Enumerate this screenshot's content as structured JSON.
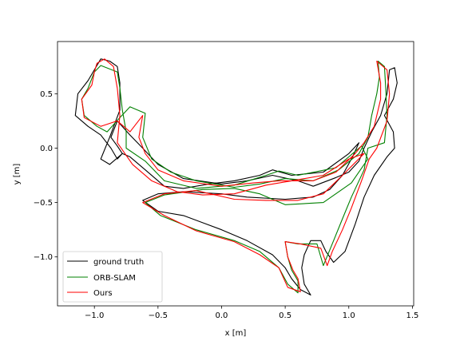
{
  "chart_data": {
    "type": "line",
    "title": "",
    "xlabel": "x [m]",
    "ylabel": "y [m]",
    "xlim": [
      -1.29,
      1.51
    ],
    "ylim": [
      -1.45,
      0.98
    ],
    "xticks": [
      -1.0,
      -0.5,
      0.0,
      0.5,
      1.0,
      1.5
    ],
    "xtick_labels": [
      "−1.0",
      "−0.5",
      "0.0",
      "0.5",
      "1.0",
      "1.5"
    ],
    "yticks": [
      -1.0,
      -0.5,
      0.0,
      0.5
    ],
    "ytick_labels": [
      "−1.0",
      "−0.5",
      "0.0",
      "0.5"
    ],
    "grid": false,
    "legend": "lower-left",
    "series": [
      {
        "name": "ground truth",
        "color": "#000000",
        "points": [
          [
            0.72,
            -0.35
          ],
          [
            0.9,
            -0.27
          ],
          [
            1.0,
            -0.22
          ],
          [
            1.08,
            -0.12
          ],
          [
            1.12,
            0.0
          ],
          [
            1.18,
            0.15
          ],
          [
            1.25,
            0.3
          ],
          [
            1.3,
            0.5
          ],
          [
            1.32,
            0.72
          ],
          [
            1.36,
            0.74
          ],
          [
            1.38,
            0.6
          ],
          [
            1.35,
            0.45
          ],
          [
            1.28,
            0.3
          ],
          [
            1.35,
            0.15
          ],
          [
            1.36,
            0.0
          ],
          [
            1.3,
            -0.08
          ],
          [
            1.2,
            -0.25
          ],
          [
            1.12,
            -0.45
          ],
          [
            1.05,
            -0.7
          ],
          [
            0.97,
            -0.95
          ],
          [
            0.88,
            -1.05
          ],
          [
            0.82,
            -0.95
          ],
          [
            0.78,
            -0.85
          ],
          [
            0.7,
            -0.85
          ],
          [
            0.65,
            -0.98
          ],
          [
            0.63,
            -1.1
          ],
          [
            0.65,
            -1.25
          ],
          [
            0.7,
            -1.35
          ],
          [
            0.62,
            -1.3
          ],
          [
            0.55,
            -1.2
          ],
          [
            0.5,
            -1.1
          ],
          [
            0.4,
            -0.98
          ],
          [
            0.2,
            -0.85
          ],
          [
            0.0,
            -0.75
          ],
          [
            -0.3,
            -0.62
          ],
          [
            -0.5,
            -0.58
          ],
          [
            -0.62,
            -0.48
          ],
          [
            -0.5,
            -0.42
          ],
          [
            -0.3,
            -0.4
          ],
          [
            0.0,
            -0.42
          ],
          [
            0.2,
            -0.45
          ],
          [
            0.5,
            -0.47
          ],
          [
            0.72,
            -0.45
          ],
          [
            0.85,
            -0.38
          ],
          [
            0.95,
            -0.25
          ],
          [
            1.03,
            -0.08
          ],
          [
            1.08,
            0.05
          ],
          [
            1.0,
            -0.05
          ],
          [
            0.8,
            -0.22
          ],
          [
            0.55,
            -0.25
          ],
          [
            0.4,
            -0.2
          ],
          [
            0.3,
            -0.25
          ],
          [
            0.1,
            -0.3
          ],
          [
            -0.1,
            -0.33
          ],
          [
            -0.3,
            -0.37
          ],
          [
            -0.45,
            -0.35
          ],
          [
            -0.6,
            -0.2
          ],
          [
            -0.72,
            -0.08
          ],
          [
            -0.78,
            -0.05
          ],
          [
            -0.88,
            -0.15
          ],
          [
            -0.95,
            -0.1
          ],
          [
            -0.88,
            0.1
          ],
          [
            -0.8,
            0.35
          ],
          [
            -0.8,
            0.6
          ],
          [
            -0.82,
            0.75
          ],
          [
            -0.88,
            0.8
          ],
          [
            -0.95,
            0.82
          ],
          [
            -1.0,
            0.72
          ],
          [
            -1.05,
            0.62
          ],
          [
            -1.13,
            0.5
          ],
          [
            -1.15,
            0.3
          ],
          [
            -1.05,
            0.2
          ],
          [
            -0.95,
            0.12
          ],
          [
            -0.87,
            0.0
          ],
          [
            -0.82,
            -0.1
          ],
          [
            -0.78,
            -0.05
          ],
          [
            -0.82,
            0.02
          ],
          [
            -0.87,
            0.1
          ],
          [
            -0.82,
            0.25
          ],
          [
            -0.72,
            0.12
          ],
          [
            -0.62,
            0.0
          ],
          [
            -0.5,
            -0.15
          ],
          [
            -0.3,
            -0.28
          ],
          [
            0.0,
            -0.33
          ],
          [
            0.2,
            -0.3
          ],
          [
            0.4,
            -0.25
          ],
          [
            0.6,
            -0.3
          ],
          [
            0.72,
            -0.35
          ]
        ]
      },
      {
        "name": "ORB-SLAM",
        "color": "#008000",
        "points": [
          [
            0.72,
            -0.3
          ],
          [
            0.92,
            -0.2
          ],
          [
            1.08,
            -0.05
          ],
          [
            1.15,
            0.1
          ],
          [
            1.18,
            0.3
          ],
          [
            1.22,
            0.5
          ],
          [
            1.24,
            0.65
          ],
          [
            1.23,
            0.8
          ],
          [
            1.28,
            0.75
          ],
          [
            1.29,
            0.55
          ],
          [
            1.3,
            0.3
          ],
          [
            1.28,
            0.05
          ],
          [
            1.15,
            0.0
          ],
          [
            1.12,
            -0.2
          ],
          [
            1.02,
            -0.45
          ],
          [
            0.95,
            -0.65
          ],
          [
            0.88,
            -0.85
          ],
          [
            0.8,
            -1.08
          ],
          [
            0.75,
            -0.88
          ],
          [
            0.6,
            -0.88
          ],
          [
            0.5,
            -0.86
          ],
          [
            0.52,
            -1.0
          ],
          [
            0.55,
            -1.12
          ],
          [
            0.6,
            -1.22
          ],
          [
            0.6,
            -1.33
          ],
          [
            0.52,
            -1.25
          ],
          [
            0.45,
            -1.1
          ],
          [
            0.3,
            -0.95
          ],
          [
            0.1,
            -0.85
          ],
          [
            -0.2,
            -0.75
          ],
          [
            -0.48,
            -0.62
          ],
          [
            -0.6,
            -0.5
          ],
          [
            -0.45,
            -0.43
          ],
          [
            -0.15,
            -0.38
          ],
          [
            0.1,
            -0.37
          ],
          [
            0.3,
            -0.42
          ],
          [
            0.5,
            -0.52
          ],
          [
            0.8,
            -0.5
          ],
          [
            1.02,
            -0.32
          ],
          [
            1.15,
            -0.1
          ],
          [
            1.1,
            0.02
          ],
          [
            0.9,
            -0.18
          ],
          [
            0.6,
            -0.25
          ],
          [
            0.45,
            -0.21
          ],
          [
            0.35,
            -0.25
          ],
          [
            0.1,
            -0.34
          ],
          [
            -0.2,
            -0.37
          ],
          [
            -0.45,
            -0.3
          ],
          [
            -0.6,
            -0.12
          ],
          [
            -0.75,
            0.0
          ],
          [
            -0.75,
            0.15
          ],
          [
            -0.78,
            0.35
          ],
          [
            -0.8,
            0.55
          ],
          [
            -0.82,
            0.7
          ],
          [
            -0.95,
            0.76
          ],
          [
            -1.0,
            0.7
          ],
          [
            -1.05,
            0.55
          ],
          [
            -1.1,
            0.45
          ],
          [
            -1.08,
            0.3
          ],
          [
            -0.98,
            0.2
          ],
          [
            -0.9,
            0.15
          ],
          [
            -0.8,
            0.28
          ],
          [
            -0.72,
            0.38
          ],
          [
            -0.6,
            0.32
          ],
          [
            -0.62,
            0.1
          ],
          [
            -0.55,
            -0.1
          ],
          [
            -0.4,
            -0.22
          ],
          [
            -0.2,
            -0.3
          ],
          [
            0.1,
            -0.36
          ],
          [
            0.3,
            -0.33
          ],
          [
            0.5,
            -0.28
          ],
          [
            0.72,
            -0.3
          ]
        ]
      },
      {
        "name": "Ours",
        "color": "#ff0000",
        "points": [
          [
            0.72,
            -0.3
          ],
          [
            0.9,
            -0.22
          ],
          [
            1.05,
            -0.05
          ],
          [
            1.12,
            0.05
          ],
          [
            1.2,
            0.2
          ],
          [
            1.25,
            0.45
          ],
          [
            1.25,
            0.6
          ],
          [
            1.22,
            0.8
          ],
          [
            1.3,
            0.72
          ],
          [
            1.32,
            0.5
          ],
          [
            1.3,
            0.25
          ],
          [
            1.22,
            0.0
          ],
          [
            1.16,
            -0.1
          ],
          [
            1.1,
            -0.3
          ],
          [
            1.02,
            -0.55
          ],
          [
            0.95,
            -0.75
          ],
          [
            0.87,
            -0.95
          ],
          [
            0.83,
            -1.08
          ],
          [
            0.78,
            -0.92
          ],
          [
            0.62,
            -0.88
          ],
          [
            0.5,
            -0.86
          ],
          [
            0.52,
            -1.0
          ],
          [
            0.56,
            -1.12
          ],
          [
            0.6,
            -1.2
          ],
          [
            0.62,
            -1.32
          ],
          [
            0.52,
            -1.28
          ],
          [
            0.45,
            -1.1
          ],
          [
            0.3,
            -0.98
          ],
          [
            0.1,
            -0.86
          ],
          [
            -0.2,
            -0.76
          ],
          [
            -0.45,
            -0.62
          ],
          [
            -0.62,
            -0.5
          ],
          [
            -0.45,
            -0.42
          ],
          [
            -0.2,
            -0.39
          ],
          [
            0.1,
            -0.47
          ],
          [
            0.35,
            -0.48
          ],
          [
            0.6,
            -0.48
          ],
          [
            0.8,
            -0.42
          ],
          [
            0.95,
            -0.25
          ],
          [
            1.12,
            -0.05
          ],
          [
            1.0,
            -0.1
          ],
          [
            0.8,
            -0.25
          ],
          [
            0.55,
            -0.3
          ],
          [
            0.35,
            -0.34
          ],
          [
            0.1,
            -0.42
          ],
          [
            -0.15,
            -0.43
          ],
          [
            -0.35,
            -0.4
          ],
          [
            -0.55,
            -0.3
          ],
          [
            -0.7,
            -0.15
          ],
          [
            -0.82,
            0.05
          ],
          [
            -0.8,
            0.3
          ],
          [
            -0.82,
            0.55
          ],
          [
            -0.85,
            0.75
          ],
          [
            -0.92,
            0.82
          ],
          [
            -0.98,
            0.78
          ],
          [
            -1.0,
            0.7
          ],
          [
            -1.02,
            0.58
          ],
          [
            -1.1,
            0.45
          ],
          [
            -1.08,
            0.28
          ],
          [
            -0.95,
            0.2
          ],
          [
            -0.82,
            0.25
          ],
          [
            -0.72,
            0.15
          ],
          [
            -0.62,
            0.3
          ],
          [
            -0.65,
            0.1
          ],
          [
            -0.6,
            -0.05
          ],
          [
            -0.5,
            -0.2
          ],
          [
            -0.3,
            -0.3
          ],
          [
            0.0,
            -0.35
          ],
          [
            0.25,
            -0.32
          ],
          [
            0.45,
            -0.3
          ],
          [
            0.72,
            -0.3
          ]
        ]
      }
    ]
  }
}
